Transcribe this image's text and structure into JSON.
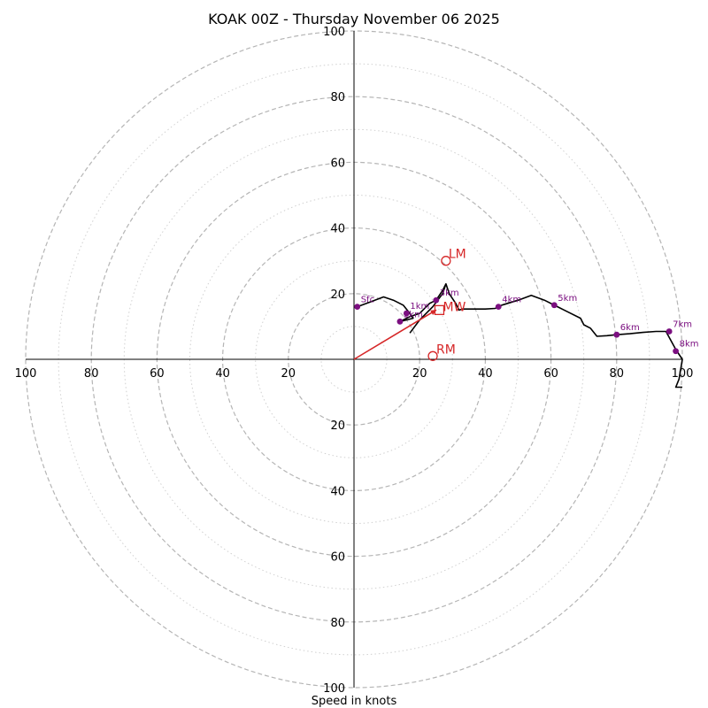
{
  "chart_data": {
    "type": "hodograph",
    "title": "KOAK 00Z - Thursday November 06 2025",
    "xlabel": "Speed in knots",
    "max_speed": 100,
    "ring_speeds_dashed": [
      20,
      40,
      60,
      80,
      100
    ],
    "ring_speeds_dotted": [
      10,
      30,
      50,
      70,
      90
    ],
    "tick_values": [
      20,
      40,
      60,
      80,
      100
    ],
    "tick_labels": [
      "20",
      "40",
      "60",
      "80",
      "100"
    ],
    "hodograph_trace_uv": [
      [
        1,
        16
      ],
      [
        5,
        17.5
      ],
      [
        9,
        19
      ],
      [
        12,
        18
      ],
      [
        15,
        16.5
      ],
      [
        17,
        14
      ],
      [
        18,
        12.5
      ],
      [
        16,
        12
      ],
      [
        14,
        11.5
      ],
      [
        17,
        13
      ],
      [
        20,
        14
      ],
      [
        23,
        17
      ],
      [
        25,
        18
      ],
      [
        27,
        21
      ],
      [
        28,
        23
      ],
      [
        29,
        20
      ],
      [
        31,
        17
      ],
      [
        32,
        15
      ],
      [
        33,
        15.3
      ],
      [
        36,
        15.3
      ],
      [
        40,
        15.3
      ],
      [
        43,
        15.5
      ],
      [
        45,
        16.5
      ],
      [
        50,
        18
      ],
      [
        54,
        19.5
      ],
      [
        58,
        18
      ],
      [
        62,
        16
      ],
      [
        65,
        14.5
      ],
      [
        69,
        12.5
      ],
      [
        70,
        10.5
      ],
      [
        72,
        9.5
      ],
      [
        74,
        7
      ],
      [
        77,
        7.2
      ],
      [
        80,
        7.5
      ],
      [
        84,
        7.8
      ],
      [
        88,
        8.2
      ],
      [
        92,
        8.5
      ],
      [
        95,
        8.5
      ],
      [
        98,
        3
      ],
      [
        100,
        0
      ],
      [
        99,
        -6
      ],
      [
        98,
        -8.5
      ],
      [
        100,
        -8.5
      ]
    ],
    "hodograph_extra_uv": [
      [
        17,
        8
      ],
      [
        20,
        12
      ],
      [
        24,
        16
      ],
      [
        27,
        20
      ],
      [
        28,
        23
      ]
    ],
    "height_markers": [
      {
        "label": "Sfc",
        "u": 1,
        "v": 16
      },
      {
        "label": "1km",
        "u": 16,
        "v": 14
      },
      {
        "label": "2km",
        "u": 14,
        "v": 11.5
      },
      {
        "label": "3km",
        "u": 25,
        "v": 18
      },
      {
        "label": "4km",
        "u": 44,
        "v": 16
      },
      {
        "label": "5km",
        "u": 61,
        "v": 16.5
      },
      {
        "label": "6km",
        "u": 80,
        "v": 7.5
      },
      {
        "label": "7km",
        "u": 96,
        "v": 8.5
      },
      {
        "label": "8km",
        "u": 98,
        "v": 2.5
      }
    ],
    "storm_motion": {
      "lm": {
        "label": "LM",
        "u": 28,
        "v": 30
      },
      "mw": {
        "label": "MW",
        "u": 26,
        "v": 15
      },
      "rm": {
        "label": "RM",
        "u": 24,
        "v": 1
      },
      "shear_arrow_from": [
        0,
        0
      ],
      "shear_arrow_to": [
        25,
        15
      ]
    },
    "colors": {
      "trace": "#000000",
      "markers": "#7b0f80",
      "storm": "#d62728",
      "grid": "#b5b5b5",
      "axis": "#000000"
    }
  }
}
